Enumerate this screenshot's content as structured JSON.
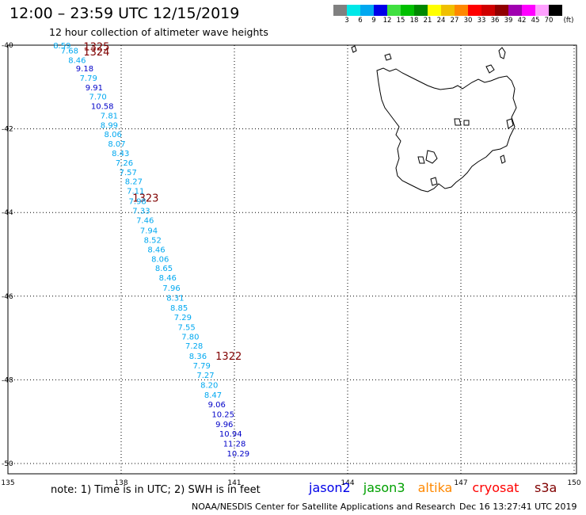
{
  "header": {
    "title": "12:00 – 23:59 UTC 12/15/2019",
    "subtitle": "12 hour collection of altimeter wave heights"
  },
  "legend": {
    "unit": "(ft)",
    "swatches": [
      {
        "color": "#808080",
        "label": "3"
      },
      {
        "color": "#00e8e8",
        "label": "6"
      },
      {
        "color": "#00a8f0",
        "label": "9"
      },
      {
        "color": "#0000e8",
        "label": "12"
      },
      {
        "color": "#40e040",
        "label": "15"
      },
      {
        "color": "#00c000",
        "label": "18"
      },
      {
        "color": "#008800",
        "label": "21"
      },
      {
        "color": "#ffff00",
        "label": "24"
      },
      {
        "color": "#f0c000",
        "label": "27"
      },
      {
        "color": "#ff8800",
        "label": "30"
      },
      {
        "color": "#ff0000",
        "label": "33"
      },
      {
        "color": "#d00000",
        "label": "36"
      },
      {
        "color": "#900000",
        "label": "39"
      },
      {
        "color": "#a000b0",
        "label": "42"
      },
      {
        "color": "#ff00ff",
        "label": "45"
      },
      {
        "color": "#ffa0ff",
        "label": "70"
      },
      {
        "color": "#000000",
        "label": ""
      }
    ]
  },
  "map": {
    "lon_ticks": [
      "135",
      "138",
      "141",
      "144",
      "147",
      "150"
    ],
    "lat_ticks": [
      "-40",
      "-42",
      "-44",
      "-46",
      "-48",
      "-50"
    ],
    "passes": [
      {
        "label": "1325",
        "lon": 137.0,
        "lat": -40.03
      },
      {
        "label": "1324",
        "lon": 137.0,
        "lat": -40.15
      },
      {
        "label": "1323",
        "lon": 138.3,
        "lat": -43.65
      },
      {
        "label": "1322",
        "lon": 140.5,
        "lat": -47.42
      }
    ],
    "wave_colors": {
      "cyan": "#00a8f0",
      "blue": "#0000c8",
      "pass": "#800000"
    },
    "wave_heights": [
      {
        "v": "8.59",
        "lon": 136.2,
        "lat": -40.0,
        "c": "cyan"
      },
      {
        "v": "7.68",
        "lon": 136.4,
        "lat": -40.12,
        "c": "cyan"
      },
      {
        "v": "8.46",
        "lon": 136.6,
        "lat": -40.35,
        "c": "cyan"
      },
      {
        "v": "9.18",
        "lon": 136.8,
        "lat": -40.55,
        "c": "blue"
      },
      {
        "v": "7.79",
        "lon": 136.9,
        "lat": -40.78,
        "c": "cyan"
      },
      {
        "v": "9.91",
        "lon": 137.05,
        "lat": -41.0,
        "c": "blue"
      },
      {
        "v": "7.70",
        "lon": 137.15,
        "lat": -41.22,
        "c": "cyan"
      },
      {
        "v": "10.58",
        "lon": 137.2,
        "lat": -41.45,
        "c": "blue"
      },
      {
        "v": "7.81",
        "lon": 137.45,
        "lat": -41.68,
        "c": "cyan"
      },
      {
        "v": "8.99",
        "lon": 137.45,
        "lat": -41.9,
        "c": "cyan"
      },
      {
        "v": "8.06",
        "lon": 137.55,
        "lat": -42.12,
        "c": "cyan"
      },
      {
        "v": "8.07",
        "lon": 137.65,
        "lat": -42.35,
        "c": "cyan"
      },
      {
        "v": "8.43",
        "lon": 137.75,
        "lat": -42.58,
        "c": "cyan"
      },
      {
        "v": "7.26",
        "lon": 137.85,
        "lat": -42.8,
        "c": "cyan"
      },
      {
        "v": "7.57",
        "lon": 137.95,
        "lat": -43.03,
        "c": "cyan"
      },
      {
        "v": "8.27",
        "lon": 138.1,
        "lat": -43.25,
        "c": "cyan"
      },
      {
        "v": "7.11",
        "lon": 138.15,
        "lat": -43.48,
        "c": "cyan"
      },
      {
        "v": "7.98",
        "lon": 138.2,
        "lat": -43.72,
        "c": "cyan"
      },
      {
        "v": "7.33",
        "lon": 138.3,
        "lat": -43.95,
        "c": "cyan"
      },
      {
        "v": "7.46",
        "lon": 138.4,
        "lat": -44.18,
        "c": "cyan"
      },
      {
        "v": "7.94",
        "lon": 138.5,
        "lat": -44.42,
        "c": "cyan"
      },
      {
        "v": "8.52",
        "lon": 138.6,
        "lat": -44.65,
        "c": "cyan"
      },
      {
        "v": "8.46",
        "lon": 138.7,
        "lat": -44.88,
        "c": "cyan"
      },
      {
        "v": "8.06",
        "lon": 138.8,
        "lat": -45.1,
        "c": "cyan"
      },
      {
        "v": "8.65",
        "lon": 138.9,
        "lat": -45.32,
        "c": "cyan"
      },
      {
        "v": "8.46",
        "lon": 139.0,
        "lat": -45.55,
        "c": "cyan"
      },
      {
        "v": "7.96",
        "lon": 139.1,
        "lat": -45.8,
        "c": "cyan"
      },
      {
        "v": "8.31",
        "lon": 139.2,
        "lat": -46.03,
        "c": "cyan"
      },
      {
        "v": "8.85",
        "lon": 139.3,
        "lat": -46.27,
        "c": "cyan"
      },
      {
        "v": "7.29",
        "lon": 139.4,
        "lat": -46.5,
        "c": "cyan"
      },
      {
        "v": "7.55",
        "lon": 139.5,
        "lat": -46.73,
        "c": "cyan"
      },
      {
        "v": "7.80",
        "lon": 139.6,
        "lat": -46.96,
        "c": "cyan"
      },
      {
        "v": "7.28",
        "lon": 139.7,
        "lat": -47.18,
        "c": "cyan"
      },
      {
        "v": "8.36",
        "lon": 139.8,
        "lat": -47.42,
        "c": "cyan"
      },
      {
        "v": "7.79",
        "lon": 139.9,
        "lat": -47.65,
        "c": "cyan"
      },
      {
        "v": "7.27",
        "lon": 140.0,
        "lat": -47.88,
        "c": "cyan"
      },
      {
        "v": "8.20",
        "lon": 140.1,
        "lat": -48.12,
        "c": "cyan"
      },
      {
        "v": "8.47",
        "lon": 140.2,
        "lat": -48.35,
        "c": "cyan"
      },
      {
        "v": "9.06",
        "lon": 140.3,
        "lat": -48.58,
        "c": "blue"
      },
      {
        "v": "10.25",
        "lon": 140.4,
        "lat": -48.82,
        "c": "blue"
      },
      {
        "v": "9.96",
        "lon": 140.5,
        "lat": -49.05,
        "c": "blue"
      },
      {
        "v": "10.94",
        "lon": 140.6,
        "lat": -49.28,
        "c": "blue"
      },
      {
        "v": "11.28",
        "lon": 140.7,
        "lat": -49.52,
        "c": "blue"
      },
      {
        "v": "10.29",
        "lon": 140.8,
        "lat": -49.75,
        "c": "blue"
      }
    ]
  },
  "footer": {
    "note": "note:  1) Time is in UTC;  2) SWH is in feet",
    "satellites": [
      {
        "name": "jason2",
        "color": "#0000e8"
      },
      {
        "name": "jason3",
        "color": "#00a000"
      },
      {
        "name": "altika",
        "color": "#ff8800"
      },
      {
        "name": "cryosat",
        "color": "#ff0000"
      },
      {
        "name": "s3a",
        "color": "#800000"
      }
    ],
    "credit": "NOAA/NESDIS Center for Satellite Applications and Research",
    "timestamp": "Dec 16 13:27:41 UTC 2019"
  }
}
